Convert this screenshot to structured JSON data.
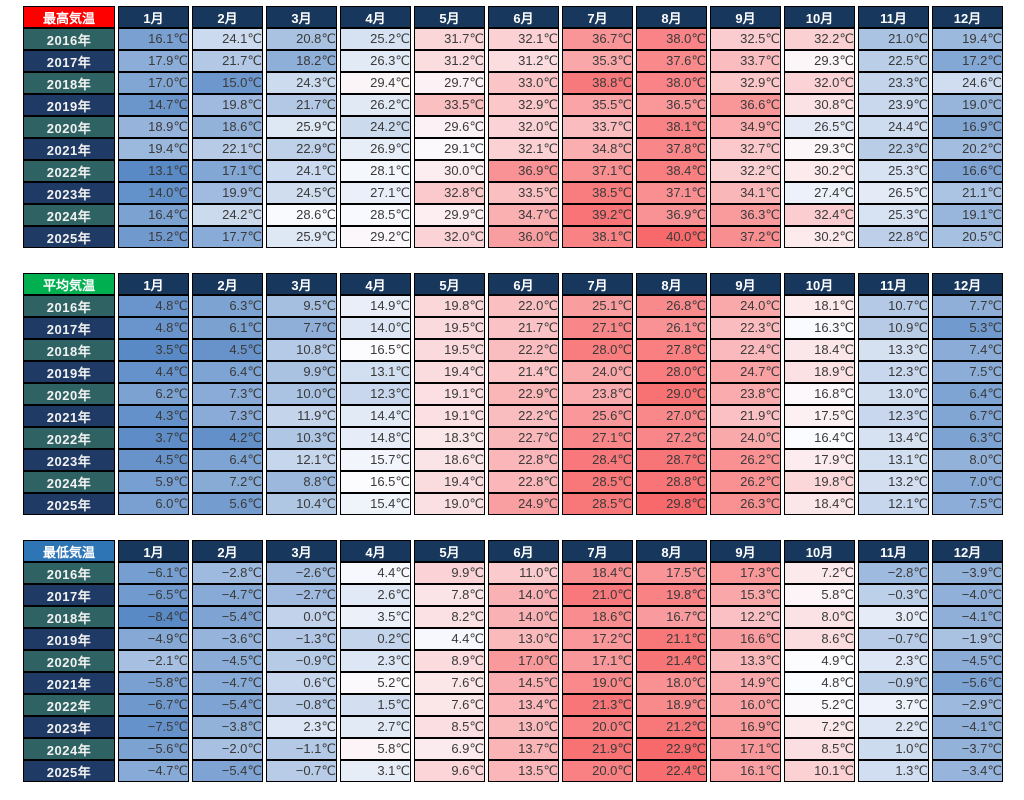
{
  "unit": "℃",
  "columns": [
    "1月",
    "2月",
    "3月",
    "4月",
    "5月",
    "6月",
    "7月",
    "8月",
    "9月",
    "10月",
    "11月",
    "12月"
  ],
  "rows": [
    "2016年",
    "2017年",
    "2018年",
    "2019年",
    "2020年",
    "2021年",
    "2022年",
    "2023年",
    "2024年",
    "2025年"
  ],
  "colors": {
    "month_header_bg": "#17375D",
    "year_teal_bg": "#2E6263",
    "year_navy_bg": "#1F3A64",
    "cell_text": "#3A3A3A",
    "border": "#000000",
    "scale_min": "#5A8AC6",
    "scale_mid": "#FCFCFF",
    "scale_max": "#F8696B"
  },
  "chart_data": [
    {
      "type": "heatmap",
      "id": "max-temp",
      "title": "最高気温",
      "header_bg": "#FF0000",
      "unit": "℃",
      "categories": [
        "1月",
        "2月",
        "3月",
        "4月",
        "5月",
        "6月",
        "7月",
        "8月",
        "9月",
        "10月",
        "11月",
        "12月"
      ],
      "series": [
        {
          "name": "2016年",
          "values": [
            16.1,
            24.1,
            20.8,
            25.2,
            31.7,
            32.1,
            36.7,
            38.0,
            32.5,
            32.2,
            21.0,
            19.4
          ]
        },
        {
          "name": "2017年",
          "values": [
            17.9,
            21.7,
            18.2,
            26.3,
            31.2,
            31.2,
            35.3,
            37.6,
            33.7,
            29.3,
            22.5,
            17.2
          ]
        },
        {
          "name": "2018年",
          "values": [
            17.0,
            15.0,
            24.3,
            29.4,
            29.7,
            33.0,
            38.8,
            38.0,
            32.9,
            32.0,
            23.3,
            24.6
          ]
        },
        {
          "name": "2019年",
          "values": [
            14.7,
            19.8,
            21.7,
            26.2,
            33.5,
            32.9,
            35.5,
            36.5,
            36.6,
            30.8,
            23.9,
            19.0
          ]
        },
        {
          "name": "2020年",
          "values": [
            18.9,
            18.6,
            25.9,
            24.2,
            29.6,
            32.0,
            33.7,
            38.1,
            34.9,
            26.5,
            24.4,
            16.9
          ]
        },
        {
          "name": "2021年",
          "values": [
            19.4,
            22.1,
            22.9,
            26.9,
            29.1,
            32.1,
            34.8,
            37.8,
            32.7,
            29.3,
            22.3,
            20.2
          ]
        },
        {
          "name": "2022年",
          "values": [
            13.1,
            17.1,
            24.1,
            28.1,
            30.0,
            36.9,
            37.1,
            38.4,
            32.2,
            30.2,
            25.3,
            16.6
          ]
        },
        {
          "name": "2023年",
          "values": [
            14.0,
            19.9,
            24.5,
            27.1,
            32.8,
            33.5,
            38.5,
            37.1,
            34.1,
            27.4,
            26.5,
            21.1
          ]
        },
        {
          "name": "2024年",
          "values": [
            16.4,
            24.2,
            28.6,
            28.5,
            29.9,
            34.7,
            39.2,
            36.9,
            36.3,
            32.4,
            25.3,
            19.1
          ]
        },
        {
          "name": "2025年",
          "values": [
            15.2,
            17.7,
            25.9,
            29.2,
            32.0,
            36.0,
            38.1,
            40.0,
            37.2,
            30.2,
            22.8,
            20.5
          ]
        }
      ]
    },
    {
      "type": "heatmap",
      "id": "avg-temp",
      "title": "平均気温",
      "header_bg": "#00B050",
      "unit": "℃",
      "categories": [
        "1月",
        "2月",
        "3月",
        "4月",
        "5月",
        "6月",
        "7月",
        "8月",
        "9月",
        "10月",
        "11月",
        "12月"
      ],
      "series": [
        {
          "name": "2016年",
          "values": [
            4.8,
            6.3,
            9.5,
            14.9,
            19.8,
            22.0,
            25.1,
            26.8,
            24.0,
            18.1,
            10.7,
            7.7
          ]
        },
        {
          "name": "2017年",
          "values": [
            4.8,
            6.1,
            7.7,
            14.0,
            19.5,
            21.7,
            27.1,
            26.1,
            22.3,
            16.3,
            10.9,
            5.3
          ]
        },
        {
          "name": "2018年",
          "values": [
            3.5,
            4.5,
            10.8,
            16.5,
            19.5,
            22.2,
            28.0,
            27.8,
            22.4,
            18.4,
            13.3,
            7.4
          ]
        },
        {
          "name": "2019年",
          "values": [
            4.4,
            6.4,
            9.9,
            13.1,
            19.4,
            21.4,
            24.0,
            28.0,
            24.7,
            18.9,
            12.3,
            7.5
          ]
        },
        {
          "name": "2020年",
          "values": [
            6.2,
            7.3,
            10.0,
            12.3,
            19.1,
            22.9,
            23.8,
            29.0,
            23.8,
            16.8,
            13.0,
            6.4
          ]
        },
        {
          "name": "2021年",
          "values": [
            4.3,
            7.3,
            11.9,
            14.4,
            19.1,
            22.2,
            25.6,
            27.0,
            21.9,
            17.5,
            12.3,
            6.7
          ]
        },
        {
          "name": "2022年",
          "values": [
            3.7,
            4.2,
            10.3,
            14.8,
            18.3,
            22.7,
            27.1,
            27.2,
            24.0,
            16.4,
            13.4,
            6.3
          ]
        },
        {
          "name": "2023年",
          "values": [
            4.5,
            6.4,
            12.1,
            15.7,
            18.6,
            22.8,
            28.4,
            28.7,
            26.2,
            17.9,
            13.1,
            8.0
          ]
        },
        {
          "name": "2024年",
          "values": [
            5.9,
            7.2,
            8.8,
            16.5,
            19.4,
            22.8,
            28.5,
            28.8,
            26.2,
            19.8,
            13.2,
            7.0
          ]
        },
        {
          "name": "2025年",
          "values": [
            6.0,
            5.6,
            10.4,
            15.4,
            19.0,
            24.9,
            28.5,
            29.8,
            26.3,
            18.4,
            12.1,
            7.5
          ]
        }
      ]
    },
    {
      "type": "heatmap",
      "id": "min-temp",
      "title": "最低気温",
      "header_bg": "#2E75B6",
      "unit": "℃",
      "categories": [
        "1月",
        "2月",
        "3月",
        "4月",
        "5月",
        "6月",
        "7月",
        "8月",
        "9月",
        "10月",
        "11月",
        "12月"
      ],
      "series": [
        {
          "name": "2016年",
          "values": [
            -6.1,
            -2.8,
            -2.6,
            4.4,
            9.9,
            11.0,
            18.4,
            17.5,
            17.3,
            7.2,
            -2.8,
            -3.9
          ]
        },
        {
          "name": "2017年",
          "values": [
            -6.5,
            -4.7,
            -2.7,
            2.6,
            7.8,
            14.0,
            21.0,
            19.8,
            15.3,
            5.8,
            -0.3,
            -4.0
          ]
        },
        {
          "name": "2018年",
          "values": [
            -8.4,
            -5.4,
            0.0,
            3.5,
            8.2,
            14.0,
            18.6,
            16.7,
            12.2,
            8.0,
            3.0,
            -4.1
          ]
        },
        {
          "name": "2019年",
          "values": [
            -4.9,
            -3.6,
            -1.3,
            0.2,
            4.4,
            13.0,
            17.2,
            21.1,
            16.6,
            8.6,
            -0.7,
            -1.9
          ]
        },
        {
          "name": "2020年",
          "values": [
            -2.1,
            -4.5,
            -0.9,
            2.3,
            8.9,
            17.0,
            17.1,
            21.4,
            13.3,
            4.9,
            2.3,
            -4.5
          ]
        },
        {
          "name": "2021年",
          "values": [
            -5.8,
            -4.7,
            0.6,
            5.2,
            7.6,
            14.5,
            19.0,
            18.0,
            14.9,
            4.8,
            -0.9,
            -5.6
          ]
        },
        {
          "name": "2022年",
          "values": [
            -6.7,
            -5.4,
            -0.8,
            1.5,
            7.6,
            13.4,
            21.3,
            18.9,
            16.0,
            5.2,
            3.7,
            -2.9
          ]
        },
        {
          "name": "2023年",
          "values": [
            -7.5,
            -3.8,
            2.3,
            2.7,
            8.5,
            13.0,
            20.0,
            21.2,
            16.9,
            7.2,
            2.2,
            -4.1
          ]
        },
        {
          "name": "2024年",
          "values": [
            -5.6,
            -2.0,
            -1.1,
            5.8,
            6.9,
            13.7,
            21.9,
            22.9,
            17.1,
            8.5,
            1.0,
            -3.7
          ]
        },
        {
          "name": "2025年",
          "values": [
            -4.7,
            -5.4,
            -0.7,
            3.1,
            9.6,
            13.5,
            20.0,
            22.4,
            16.1,
            10.1,
            1.3,
            -3.4
          ]
        }
      ]
    }
  ]
}
